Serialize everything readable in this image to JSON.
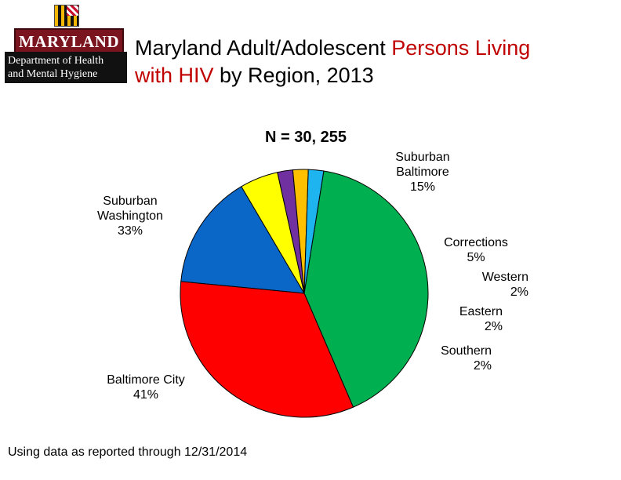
{
  "header": {
    "logo": {
      "wordmark": "MARYLAND",
      "dept_line1": "Department of Health",
      "dept_line2": "and Mental Hygiene"
    },
    "title": {
      "part1": "Maryland Adult/Adolescent ",
      "part2": "Persons Living",
      "part3": "with HIV",
      "part4": " by Region, 2013"
    },
    "accent_color": "#c00000"
  },
  "chart_data": {
    "type": "pie",
    "n_label": "N = 30, 255",
    "slices": [
      {
        "name": "Suburban Baltimore",
        "value": 15,
        "label_lines": [
          "Suburban",
          "Baltimore",
          "15%"
        ],
        "color": "#0a66c7"
      },
      {
        "name": "Corrections",
        "value": 5,
        "label_lines": [
          "Corrections",
          "5%"
        ],
        "color": "#ffff00"
      },
      {
        "name": "Western",
        "value": 2,
        "label_lines": [
          "Western",
          "2%"
        ],
        "color": "#7030a0"
      },
      {
        "name": "Eastern",
        "value": 2,
        "label_lines": [
          "Eastern",
          "2%"
        ],
        "color": "#ffc000"
      },
      {
        "name": "Southern",
        "value": 2,
        "label_lines": [
          "Southern",
          "2%"
        ],
        "color": "#1eb4f0"
      },
      {
        "name": "Baltimore City",
        "value": 41,
        "label_lines": [
          "Baltimore City",
          "41%"
        ],
        "color": "#00b050"
      },
      {
        "name": "Suburban Washington",
        "value": 33,
        "label_lines": [
          "Suburban",
          "Washington",
          "33%"
        ],
        "color": "#ff0000"
      }
    ]
  },
  "footer": {
    "note": "Using data as reported through 12/31/2014"
  }
}
